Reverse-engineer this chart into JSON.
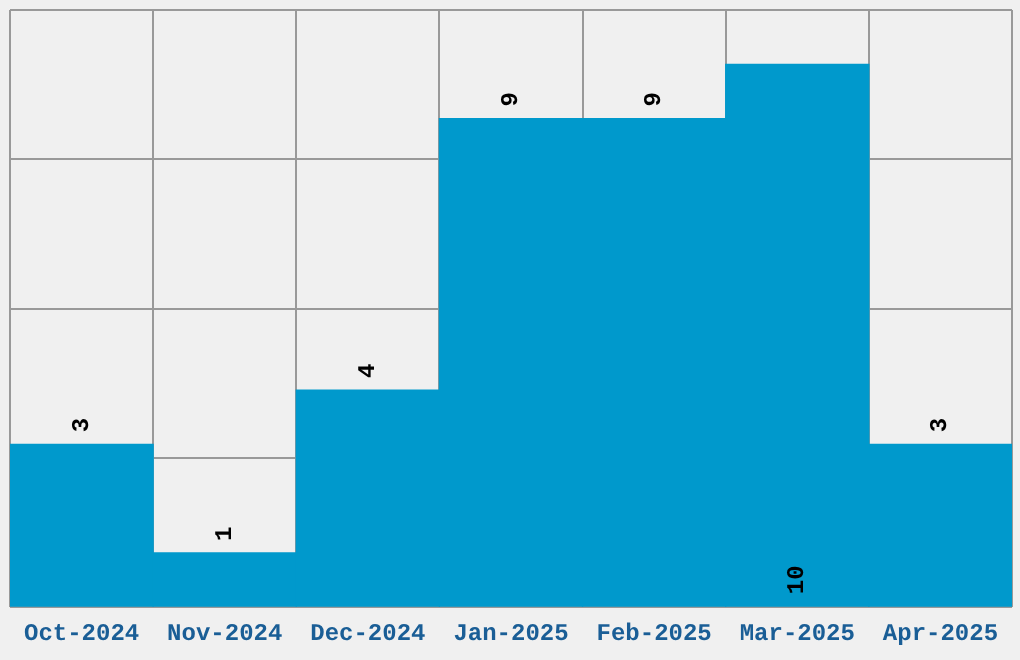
{
  "chart_data": {
    "type": "bar",
    "categories": [
      "Oct-2024",
      "Nov-2024",
      "Dec-2024",
      "Jan-2025",
      "Feb-2025",
      "Mar-2025",
      "Apr-2025"
    ],
    "values": [
      3,
      1,
      4,
      9,
      9,
      10,
      3
    ],
    "color": "#0099cc",
    "data_labels": true,
    "grid": true,
    "tick_labels": "x",
    "ylim": [
      0,
      11
    ],
    "yticks": [
      0,
      {
        "value": 2.75,
        "label": null
      },
      {
        "value": 5.5,
        "label": null
      },
      {
        "value": 8.25,
        "label": null
      },
      {
        "value": 11,
        "label": null
      }
    ],
    "legend": false
  }
}
